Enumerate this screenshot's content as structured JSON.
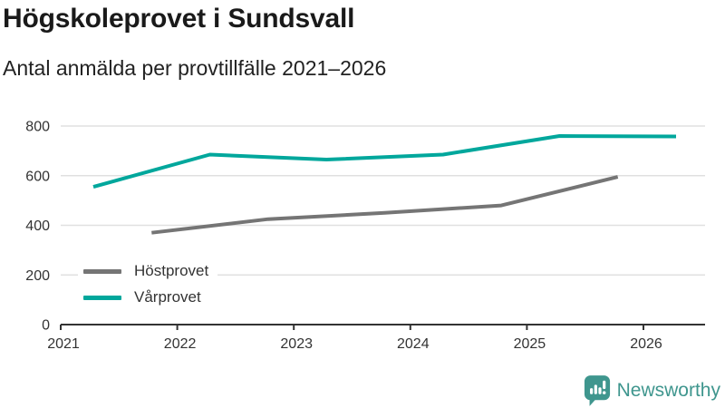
{
  "chart_data": {
    "type": "line",
    "title": "Högskoleprovet i Sundsvall",
    "subtitle": "Antal anmälda per provtillfälle 2021–2026",
    "xlabel": "",
    "ylabel": "",
    "xlim": [
      2021,
      2026.55
    ],
    "ylim": [
      0,
      800
    ],
    "x_ticks": [
      2021,
      2022,
      2023,
      2024,
      2025,
      2026
    ],
    "y_ticks": [
      0,
      200,
      400,
      600,
      800
    ],
    "grid": "horizontal",
    "grid_color": "#e0e0e0",
    "axis_color": "#333333",
    "legend_position": "inside bottom-left",
    "series": [
      {
        "name": "Höstprovet",
        "color": "#757575",
        "x": [
          2021.78,
          2022.78,
          2023.78,
          2024.78,
          2025.78
        ],
        "values": [
          370,
          425,
          450,
          480,
          595
        ]
      },
      {
        "name": "Vårprovet",
        "color": "#00a79c",
        "x": [
          2021.28,
          2022.28,
          2023.28,
          2024.28,
          2025.28,
          2026.28
        ],
        "values": [
          555,
          685,
          665,
          685,
          760,
          758
        ]
      }
    ]
  },
  "footer": {
    "brand": "Newsworthy",
    "brand_color": "#3f968e"
  }
}
